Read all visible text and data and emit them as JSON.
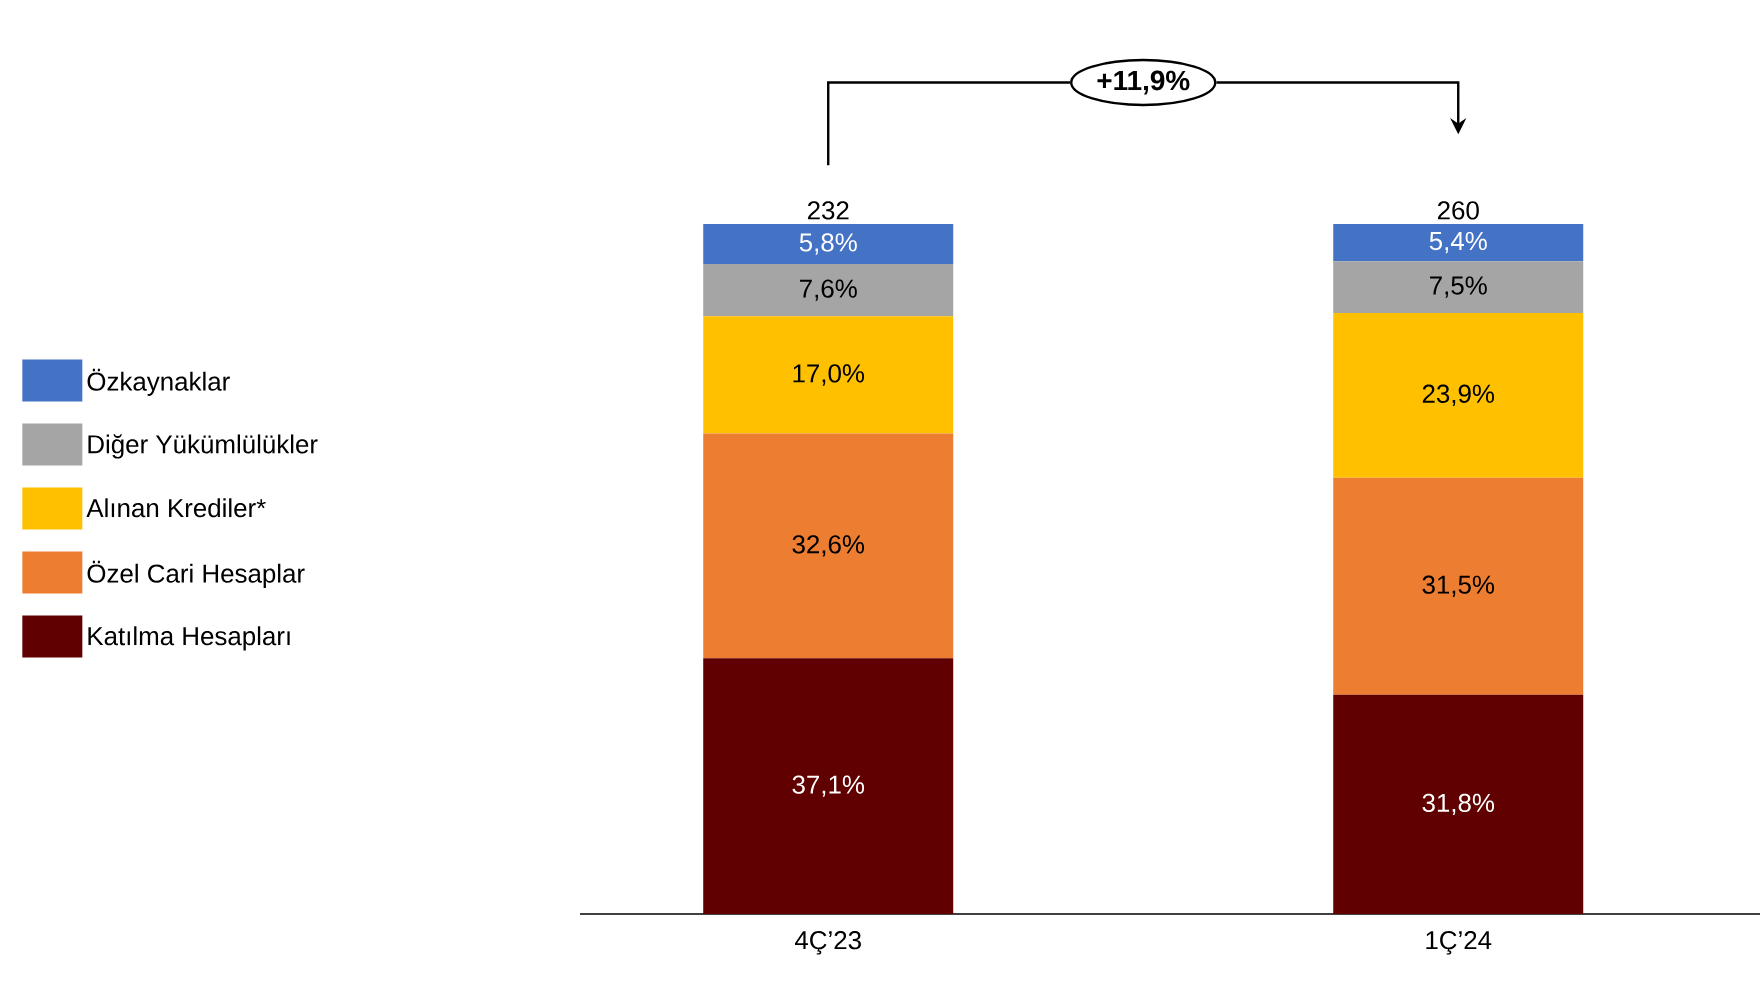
{
  "chart_data": {
    "type": "bar",
    "stacked": true,
    "legend": "left",
    "categories": [
      "4Ç’23",
      "1Ç’24"
    ],
    "series": [
      {
        "name": "Katılma Hesapları",
        "color": "#600000",
        "values": [
          37.1,
          31.8
        ],
        "value_labels": [
          "37,1%",
          "31,8%"
        ]
      },
      {
        "name": "Özel Cari Hesaplar",
        "color": "#ED7D31",
        "values": [
          32.6,
          31.5
        ],
        "value_labels": [
          "32,6%",
          "31,5%"
        ]
      },
      {
        "name": "Alınan Krediler*",
        "color": "#FFC000",
        "values": [
          17.0,
          23.9
        ],
        "value_labels": [
          "17,0%",
          "23,9%"
        ]
      },
      {
        "name": "Diğer Yükümlülükler",
        "color": "#A5A5A5",
        "values": [
          7.6,
          7.5
        ],
        "value_labels": [
          "7,6%",
          "7,5%"
        ]
      },
      {
        "name": "Özkaynaklar",
        "color": "#4472C4",
        "values": [
          5.8,
          5.4
        ],
        "value_labels": [
          "5,8%",
          "5,4%"
        ]
      }
    ],
    "annotations": [
      {
        "text": "232",
        "x": "4Ç’23",
        "y": 100.1
      },
      {
        "text": "260",
        "x": "1Ç’24",
        "y": 100.1
      },
      "+11,9%"
    ]
  }
}
